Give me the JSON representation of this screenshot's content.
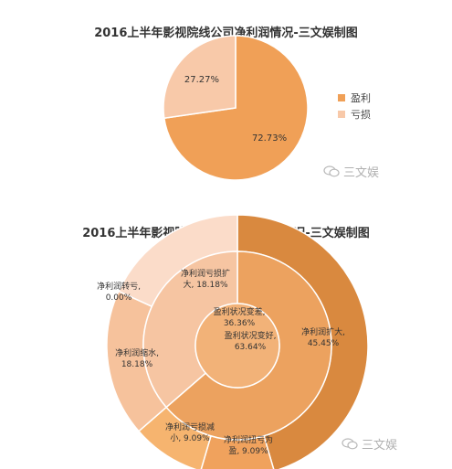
{
  "charts": [
    {
      "title": "2016上半年影视院线公司净利润情况-三文娱制图"
    },
    {
      "title": "2016上半年影视院线公司净利润变动情况-三文娱制图"
    }
  ],
  "watermark": "三文娱",
  "chart_data": [
    {
      "type": "pie",
      "title": "2016上半年影视院线公司净利润情况-三文娱制图",
      "legend_placement": "right",
      "slices": [
        {
          "label": "盈利",
          "value": 72.73,
          "display": "72.73%",
          "color": "#f0a057"
        },
        {
          "label": "亏损",
          "value": 27.27,
          "display": "27.27%",
          "color": "#f8c9a9"
        }
      ]
    },
    {
      "type": "sunburst",
      "title": "2016上半年影视院线公司净利润变动情况-三文娱制图",
      "inner": [
        {
          "label": "盈利状况变好,",
          "value_label": "63.64%",
          "value": 63.64,
          "color": "#eca25f"
        },
        {
          "label": "盈利状况变差,",
          "value_label": "36.36%",
          "value": 36.36,
          "color": "#f6c5a2"
        }
      ],
      "outer": [
        {
          "label": "净利润扩大,",
          "value_label": "45.45%",
          "value": 45.45,
          "color": "#d9893f"
        },
        {
          "label": "净利润扭亏为",
          "value_label": "盈, 9.09%",
          "value": 9.09,
          "color": "#f0a25d"
        },
        {
          "label": "净利润亏损减",
          "value_label": "小, 9.09%",
          "value": 9.09,
          "color": "#f6b46f"
        },
        {
          "label": "净利润缩水,",
          "value_label": "18.18%",
          "value": 18.18,
          "color": "#f6c29c"
        },
        {
          "label": "净利润转亏,",
          "value_label": "0.00%",
          "value": 0.0,
          "color": "#fbd8bf"
        },
        {
          "label": "净利润亏损扩",
          "value_label": "大, 18.18%",
          "value": 18.18,
          "color": "#fbdcc9"
        }
      ]
    }
  ]
}
